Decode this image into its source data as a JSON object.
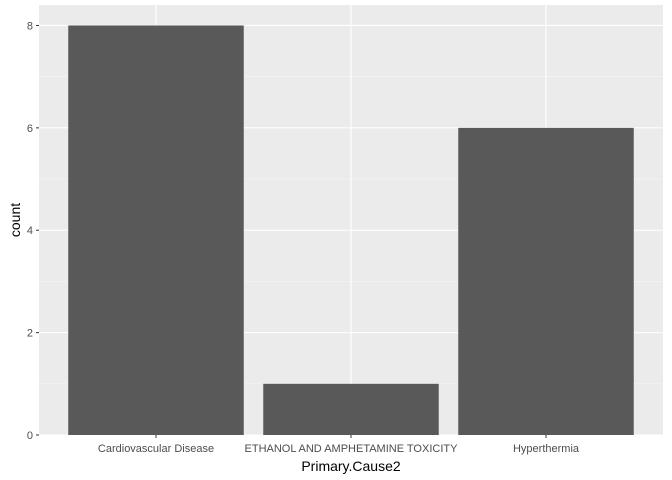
{
  "chart_data": {
    "type": "bar",
    "categories": [
      "Cardiovascular Disease",
      "ETHANOL AND AMPHETAMINE TOXICITY",
      "Hyperthermia"
    ],
    "values": [
      8,
      1,
      6
    ],
    "title": "",
    "xlabel": "Primary.Cause2",
    "ylabel": "count",
    "ylim": [
      0,
      8.4
    ],
    "yticks": [
      "0",
      "2",
      "4",
      "6",
      "8"
    ],
    "grid": true,
    "legend": "none",
    "colors": {
      "panel": "#ebebeb",
      "grid_major": "#ffffff",
      "grid_minor": "#f5f5f5",
      "bar": "#595959",
      "tick_text": "#4d4d4d",
      "tick_mark": "#333333"
    }
  }
}
